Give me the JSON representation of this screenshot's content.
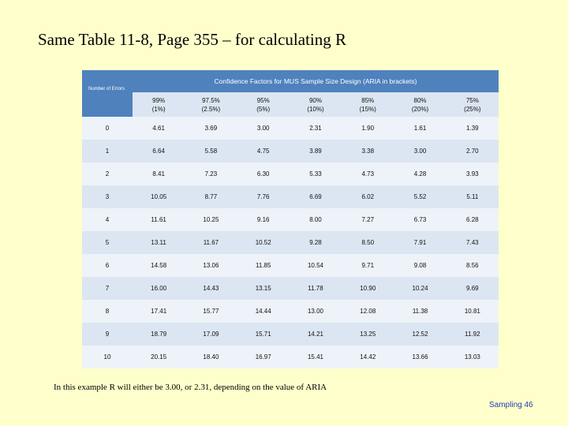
{
  "title": "Same Table 11-8, Page 355 – for calculating R",
  "table": {
    "corner_label": "Number of Errors",
    "caption": "Confidence Factors for MUS Sample Size Design (ARIA in brackets)",
    "columns": [
      {
        "pct": "99%",
        "aria": "(1%)"
      },
      {
        "pct": "97.5%",
        "aria": "(2.5%)"
      },
      {
        "pct": "95%",
        "aria": "(5%)"
      },
      {
        "pct": "90%",
        "aria": "(10%)"
      },
      {
        "pct": "85%",
        "aria": "(15%)"
      },
      {
        "pct": "80%",
        "aria": "(20%)"
      },
      {
        "pct": "75%",
        "aria": "(25%)"
      }
    ],
    "rows": [
      {
        "errors": "0",
        "values": [
          "4.61",
          "3.69",
          "3.00",
          "2.31",
          "1.90",
          "1.61",
          "1.39"
        ]
      },
      {
        "errors": "1",
        "values": [
          "6.64",
          "5.58",
          "4.75",
          "3.89",
          "3.38",
          "3.00",
          "2.70"
        ]
      },
      {
        "errors": "2",
        "values": [
          "8.41",
          "7.23",
          "6.30",
          "5.33",
          "4.73",
          "4.28",
          "3.93"
        ]
      },
      {
        "errors": "3",
        "values": [
          "10.05",
          "8.77",
          "7.76",
          "6.69",
          "6.02",
          "5.52",
          "5.11"
        ]
      },
      {
        "errors": "4",
        "values": [
          "11.61",
          "10.25",
          "9.16",
          "8.00",
          "7.27",
          "6.73",
          "6.28"
        ]
      },
      {
        "errors": "5",
        "values": [
          "13.11",
          "11.67",
          "10.52",
          "9.28",
          "8.50",
          "7.91",
          "7.43"
        ]
      },
      {
        "errors": "6",
        "values": [
          "14.58",
          "13.06",
          "11.85",
          "10.54",
          "9.71",
          "9.08",
          "8.56"
        ]
      },
      {
        "errors": "7",
        "values": [
          "16.00",
          "14.43",
          "13.15",
          "11.78",
          "10.90",
          "10.24",
          "9.69"
        ]
      },
      {
        "errors": "8",
        "values": [
          "17.41",
          "15.77",
          "14.44",
          "13.00",
          "12.08",
          "11.38",
          "10.81"
        ]
      },
      {
        "errors": "9",
        "values": [
          "18.79",
          "17.09",
          "15.71",
          "14.21",
          "13.25",
          "12.52",
          "11.92"
        ]
      },
      {
        "errors": "10",
        "values": [
          "20.15",
          "18.40",
          "16.97",
          "15.41",
          "14.42",
          "13.66",
          "13.03"
        ]
      }
    ]
  },
  "note": "In this example R will either be 3.00, or 2.31, depending on the value of ARIA",
  "footer": "Sampling 46",
  "colors": {
    "background": "#ffffcc",
    "header_fill": "#4f81bd",
    "band_fill": "#dce6f2",
    "plain_fill": "#eef3f9",
    "footer_text": "#1f3faf"
  }
}
